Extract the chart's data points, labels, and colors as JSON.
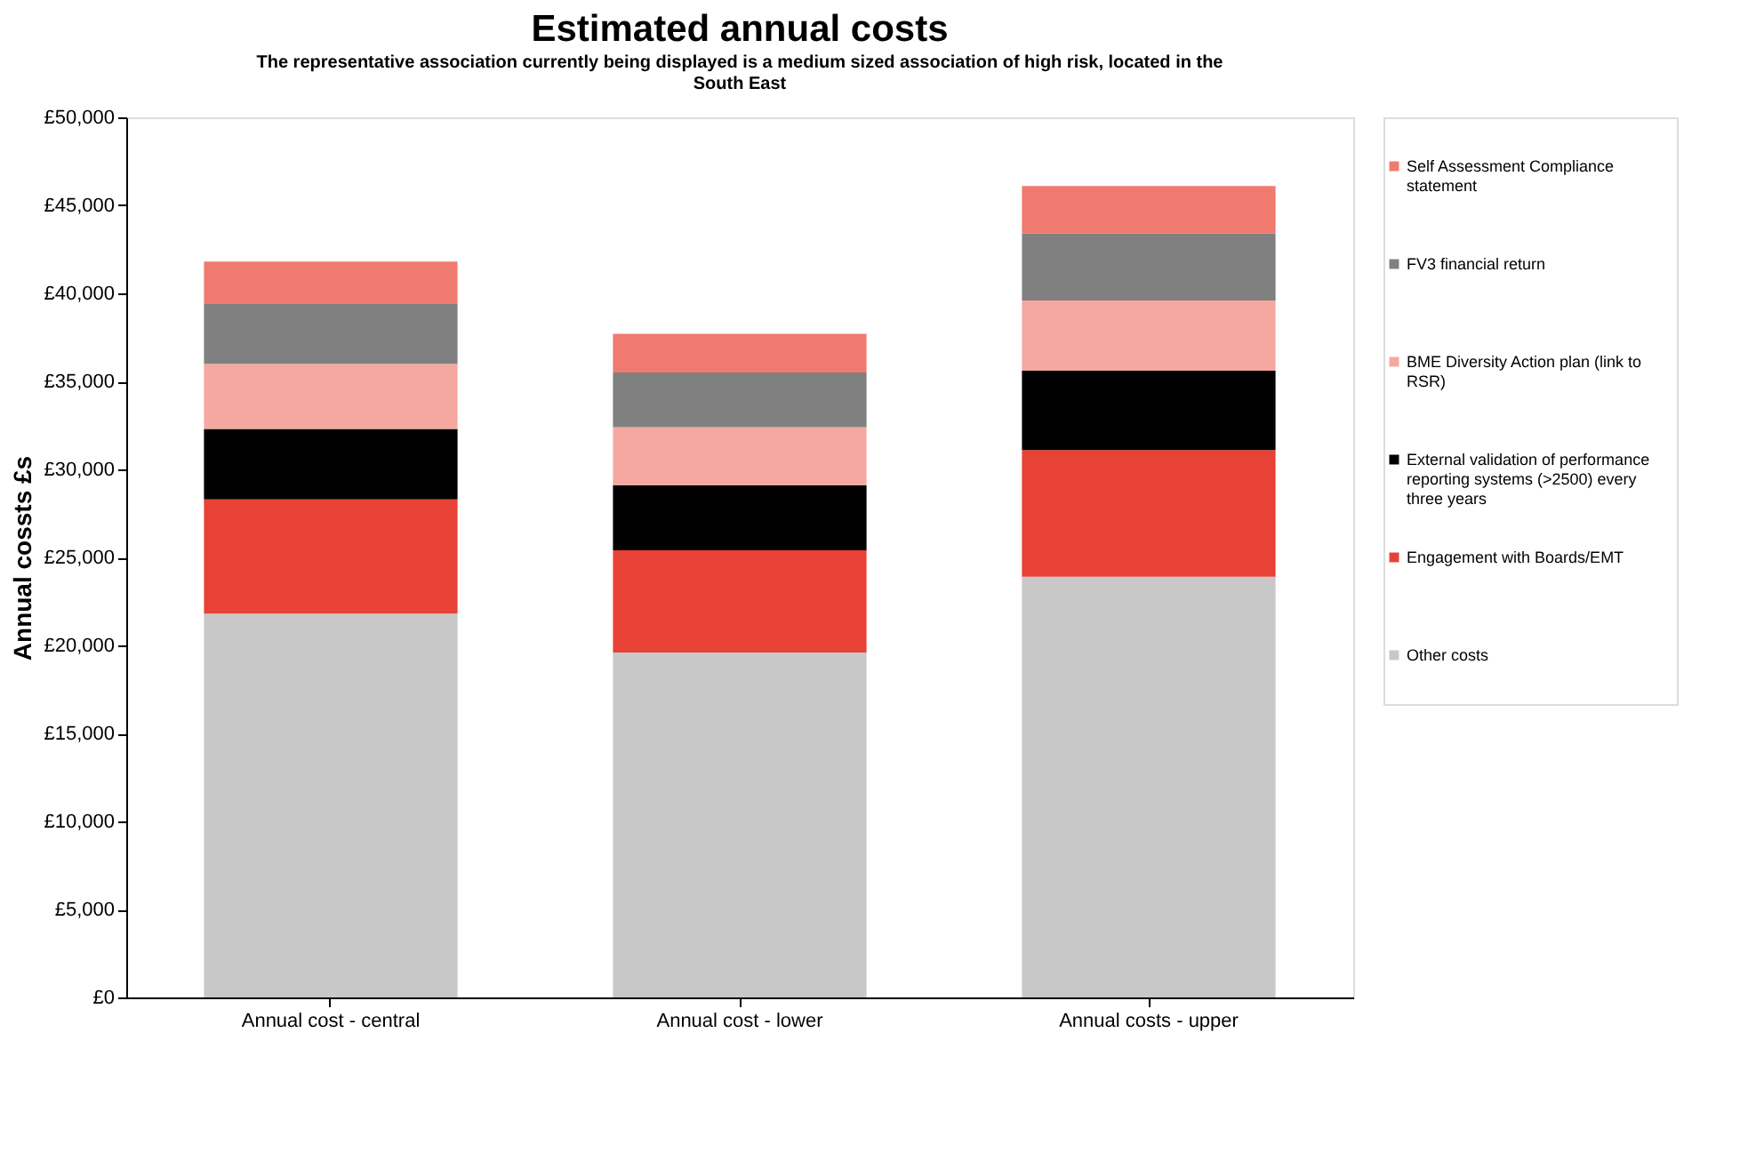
{
  "chart_data": {
    "type": "bar",
    "stacked": true,
    "title": "Estimated annual costs",
    "subtitle": "The representative association currently being displayed is a medium sized association of high risk, located in the South East",
    "ylabel": "Annual cossts £s",
    "categories": [
      "Annual cost - central",
      "Annual cost - lower",
      "Annual costs - upper"
    ],
    "series": [
      {
        "name": "Other costs",
        "color": "#c8c8c8",
        "values": [
          21800,
          19600,
          23900
        ]
      },
      {
        "name": "Engagement with Boards/EMT",
        "color": "#e84236",
        "values": [
          6500,
          5800,
          7200
        ]
      },
      {
        "name": "External validation of performance reporting systems (>2500) every three years",
        "color": "#000000",
        "values": [
          4000,
          3700,
          4500
        ]
      },
      {
        "name": "BME Diversity Action plan (link to RSR)",
        "color": "#f4a8a0",
        "values": [
          3700,
          3300,
          4000
        ]
      },
      {
        "name": "FV3 financial return",
        "color": "#808080",
        "values": [
          3400,
          3100,
          3800
        ]
      },
      {
        "name": "Self Assessment Compliance statement",
        "color": "#f07a70",
        "values": [
          2400,
          2200,
          2700
        ]
      }
    ],
    "ylim": [
      0,
      50000
    ],
    "yticks": [
      {
        "value": 0,
        "label": "£0"
      },
      {
        "value": 5000,
        "label": "£5,000"
      },
      {
        "value": 10000,
        "label": "£10,000"
      },
      {
        "value": 15000,
        "label": "£15,000"
      },
      {
        "value": 20000,
        "label": "£20,000"
      },
      {
        "value": 25000,
        "label": "£25,000"
      },
      {
        "value": 30000,
        "label": "£30,000"
      },
      {
        "value": 35000,
        "label": "£35,000"
      },
      {
        "value": 40000,
        "label": "£40,000"
      },
      {
        "value": 45000,
        "label": "£45,000"
      },
      {
        "value": 50000,
        "label": "£50,000"
      }
    ],
    "grid": false,
    "legend": "right"
  }
}
